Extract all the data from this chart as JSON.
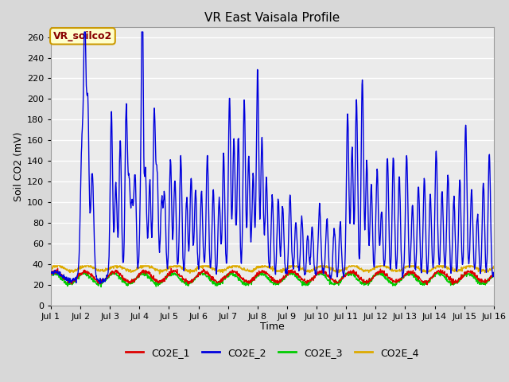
{
  "title": "VR East Vaisala Profile",
  "xlabel": "Time",
  "ylabel": "Soil CO2 (mV)",
  "ylim": [
    0,
    270
  ],
  "yticks": [
    0,
    20,
    40,
    60,
    80,
    100,
    120,
    140,
    160,
    180,
    200,
    220,
    240,
    260
  ],
  "fig_bg_color": "#d8d8d8",
  "plot_bg_color": "#ebebeb",
  "annotation_text": "VR_soilco2",
  "annotation_bg": "#ffffcc",
  "annotation_border": "#cc9900",
  "annotation_text_color": "#880000",
  "series_colors": {
    "CO2E_1": "#dd0000",
    "CO2E_2": "#0000dd",
    "CO2E_3": "#00cc00",
    "CO2E_4": "#ddaa00"
  },
  "n_days": 15,
  "pts_per_day": 96,
  "grid_color": "#ffffff",
  "title_fontsize": 11,
  "axis_fontsize": 9,
  "tick_fontsize": 8,
  "legend_fontsize": 9,
  "line_width": 1.0
}
